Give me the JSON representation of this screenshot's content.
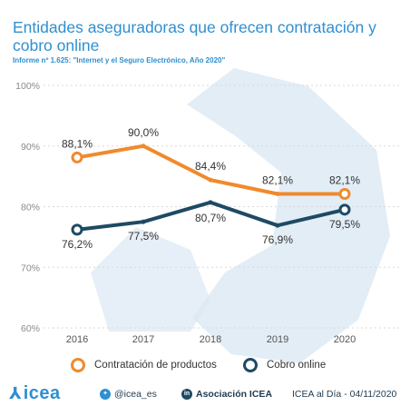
{
  "title": "Entidades aseguradoras que ofrecen contratación y cobro online",
  "subtitle": "Informe nº 1.625: \"Internet y el Seguro Electrónico, Año 2020\"",
  "colors": {
    "orange": "#f08a2c",
    "navy": "#1e4a63",
    "title": "#2f8fd0",
    "watermark": "#dbe8f4"
  },
  "chart_data": {
    "type": "line",
    "categories": [
      "2016",
      "2017",
      "2018",
      "2019",
      "2020"
    ],
    "y_ticks": [
      "60%",
      "70%",
      "80%",
      "90%",
      "100%"
    ],
    "ylim": [
      60,
      100
    ],
    "grid": true,
    "legend_position": "bottom",
    "series": [
      {
        "name": "Contratación de productos",
        "values": [
          88.1,
          90.0,
          84.4,
          82.1,
          82.1
        ],
        "labels": [
          "88,1%",
          "90,0%",
          "84,4%",
          "82,1%",
          "82,1%"
        ]
      },
      {
        "name": "Cobro online",
        "values": [
          76.2,
          77.5,
          80.7,
          76.9,
          79.5
        ],
        "labels": [
          "76,2%",
          "77,5%",
          "80,7%",
          "76,9%",
          "79,5%"
        ]
      }
    ]
  },
  "footer": {
    "logo_text": "icea",
    "logo_icon": "icea-logo-icon",
    "twitter": "@icea_es",
    "linkedin_icon_text": "in",
    "linkedin": "Asociación ICEA",
    "date_note": "ICEA al Día - 04/11/2020"
  }
}
